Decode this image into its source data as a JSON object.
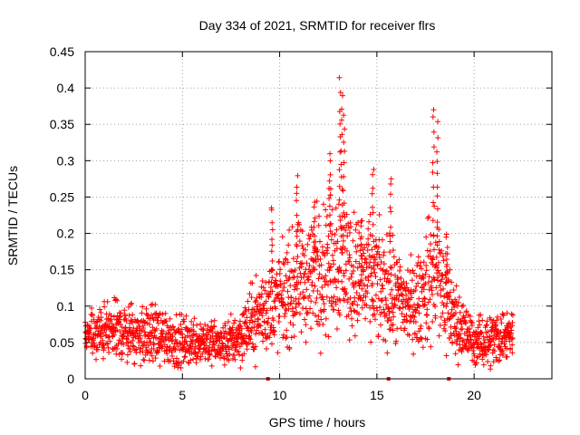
{
  "chart_data": {
    "type": "scatter",
    "title": "Day 334 of 2021, SRMTID for receiver flrs",
    "xlabel": "GPS time / hours",
    "ylabel": "SRMTID / TECUs",
    "xlim": [
      0,
      24
    ],
    "ylim": [
      0,
      0.45
    ],
    "xticks": [
      0,
      5,
      10,
      15,
      20
    ],
    "xtick_labels": [
      "0",
      "5",
      "10",
      "15",
      "20"
    ],
    "yticks": [
      0,
      0.05,
      0.1,
      0.15,
      0.2,
      0.25,
      0.3,
      0.35,
      0.4,
      0.45
    ],
    "ytick_labels": [
      "0",
      "0.05",
      "0.1",
      "0.15",
      "0.2",
      "0.25",
      "0.3",
      "0.35",
      "0.4",
      "0.45"
    ],
    "grid": true,
    "legend": "none",
    "marker": "plus",
    "color": "#ff0000",
    "data_range_hours": [
      0,
      22
    ],
    "baseline_markers_x": [
      9.4,
      15.6,
      18.7
    ],
    "envelope": [
      {
        "x": 0.0,
        "y": 0.055,
        "spread": 0.025
      },
      {
        "x": 1.0,
        "y": 0.065,
        "spread": 0.035
      },
      {
        "x": 2.0,
        "y": 0.065,
        "spread": 0.035
      },
      {
        "x": 3.0,
        "y": 0.06,
        "spread": 0.035
      },
      {
        "x": 4.0,
        "y": 0.06,
        "spread": 0.035
      },
      {
        "x": 5.0,
        "y": 0.05,
        "spread": 0.03
      },
      {
        "x": 6.0,
        "y": 0.055,
        "spread": 0.03
      },
      {
        "x": 7.0,
        "y": 0.045,
        "spread": 0.025
      },
      {
        "x": 8.0,
        "y": 0.06,
        "spread": 0.035
      },
      {
        "x": 9.0,
        "y": 0.09,
        "spread": 0.05
      },
      {
        "x": 10.0,
        "y": 0.11,
        "spread": 0.06
      },
      {
        "x": 11.0,
        "y": 0.13,
        "spread": 0.07
      },
      {
        "x": 12.0,
        "y": 0.15,
        "spread": 0.08
      },
      {
        "x": 13.0,
        "y": 0.17,
        "spread": 0.09
      },
      {
        "x": 14.0,
        "y": 0.14,
        "spread": 0.07
      },
      {
        "x": 15.0,
        "y": 0.13,
        "spread": 0.07
      },
      {
        "x": 16.0,
        "y": 0.11,
        "spread": 0.06
      },
      {
        "x": 17.0,
        "y": 0.1,
        "spread": 0.05
      },
      {
        "x": 18.0,
        "y": 0.15,
        "spread": 0.09
      },
      {
        "x": 19.0,
        "y": 0.08,
        "spread": 0.05
      },
      {
        "x": 20.0,
        "y": 0.05,
        "spread": 0.025
      },
      {
        "x": 21.0,
        "y": 0.055,
        "spread": 0.035
      },
      {
        "x": 22.0,
        "y": 0.065,
        "spread": 0.03
      }
    ],
    "peaks": [
      {
        "x": 9.6,
        "y": 0.24
      },
      {
        "x": 10.9,
        "y": 0.28
      },
      {
        "x": 11.8,
        "y": 0.24
      },
      {
        "x": 12.6,
        "y": 0.31
      },
      {
        "x": 13.1,
        "y": 0.41
      },
      {
        "x": 13.2,
        "y": 0.39
      },
      {
        "x": 13.3,
        "y": 0.36
      },
      {
        "x": 14.2,
        "y": 0.22
      },
      {
        "x": 14.8,
        "y": 0.29
      },
      {
        "x": 15.7,
        "y": 0.28
      },
      {
        "x": 17.9,
        "y": 0.375
      },
      {
        "x": 18.1,
        "y": 0.35
      },
      {
        "x": 18.6,
        "y": 0.2
      }
    ]
  }
}
